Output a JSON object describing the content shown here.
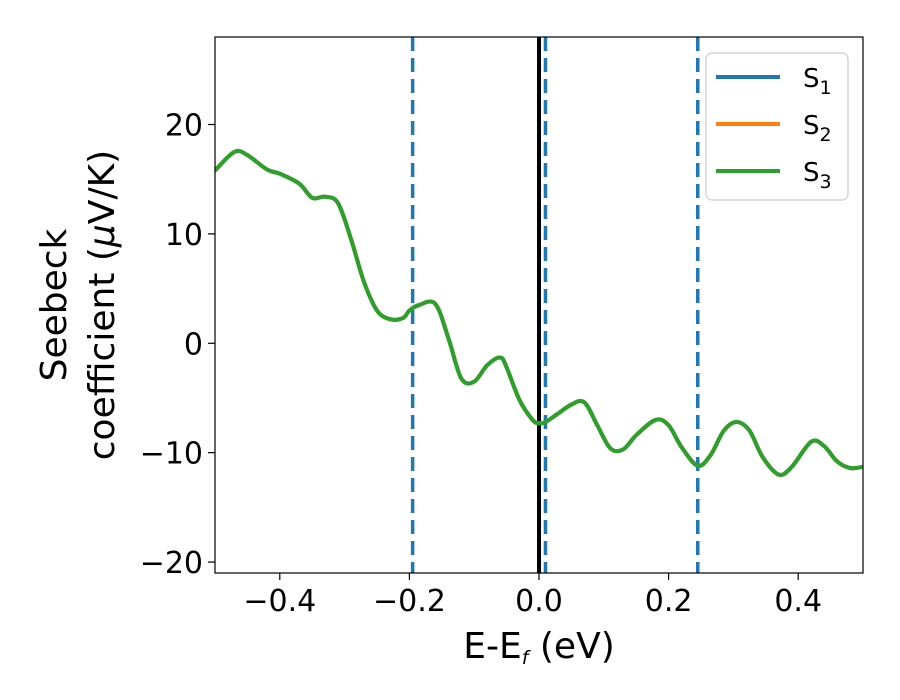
{
  "chart_data": {
    "type": "line",
    "xlabel": "E-E",
    "xlabel_sub": "f",
    "xlabel_unit": " (eV)",
    "ylabel_line1": "Seebeck",
    "ylabel_line2_pre": "coefficient  (",
    "ylabel_mu": "μ",
    "ylabel_line2_post": "V/K)",
    "xlim": [
      -0.5,
      0.5
    ],
    "ylim": [
      -21,
      28
    ],
    "x_ticks": [
      -0.4,
      -0.2,
      0.0,
      0.2,
      0.4
    ],
    "x_tick_labels": [
      "−0.4",
      "−0.2",
      "0.0",
      "0.2",
      "0.4"
    ],
    "y_ticks": [
      -20,
      -10,
      0,
      10,
      20
    ],
    "y_tick_labels": [
      "−20",
      "−10",
      "0",
      "10",
      "20"
    ],
    "grid": false,
    "legend_position": "top-right",
    "series": [
      {
        "name": "S",
        "sub": "1",
        "color": "#1f77b4",
        "x": [
          -0.5,
          -0.47,
          -0.45,
          -0.42,
          -0.4,
          -0.37,
          -0.35,
          -0.33,
          -0.31,
          -0.29,
          -0.27,
          -0.25,
          -0.23,
          -0.21,
          -0.2,
          -0.185,
          -0.16,
          -0.14,
          -0.12,
          -0.1,
          -0.08,
          -0.06,
          -0.05,
          -0.03,
          -0.01,
          0.0,
          0.01,
          0.03,
          0.05,
          0.07,
          0.09,
          0.11,
          0.13,
          0.15,
          0.18,
          0.2,
          0.22,
          0.245,
          0.265,
          0.285,
          0.305,
          0.325,
          0.345,
          0.37,
          0.39,
          0.42,
          0.44,
          0.46,
          0.48,
          0.5
        ],
        "y": [
          15.8,
          17.5,
          17.2,
          15.9,
          15.5,
          14.6,
          13.3,
          13.4,
          12.8,
          9.5,
          5.6,
          3.0,
          2.2,
          2.3,
          3.0,
          3.5,
          3.6,
          0.5,
          -3.2,
          -3.5,
          -2.0,
          -1.3,
          -2.2,
          -5.2,
          -7.0,
          -7.3,
          -7.2,
          -6.4,
          -5.6,
          -5.4,
          -7.5,
          -9.6,
          -9.7,
          -8.4,
          -7.0,
          -7.5,
          -9.5,
          -11.2,
          -10.2,
          -8.0,
          -7.2,
          -8.0,
          -10.4,
          -12.0,
          -11.3,
          -9.0,
          -9.4,
          -10.8,
          -11.4,
          -11.3
        ]
      },
      {
        "name": "S",
        "sub": "2",
        "color": "#ff7f0e",
        "x": [
          -0.5,
          -0.47,
          -0.45,
          -0.42,
          -0.4,
          -0.37,
          -0.35,
          -0.33,
          -0.31,
          -0.29,
          -0.27,
          -0.25,
          -0.23,
          -0.21,
          -0.2,
          -0.185,
          -0.16,
          -0.14,
          -0.12,
          -0.1,
          -0.08,
          -0.06,
          -0.05,
          -0.03,
          -0.01,
          0.0,
          0.01,
          0.03,
          0.05,
          0.07,
          0.09,
          0.11,
          0.13,
          0.15,
          0.18,
          0.2,
          0.22,
          0.245,
          0.265,
          0.285,
          0.305,
          0.325,
          0.345,
          0.37,
          0.39,
          0.42,
          0.44,
          0.46,
          0.48,
          0.5
        ],
        "y": [
          15.8,
          17.5,
          17.2,
          15.9,
          15.5,
          14.6,
          13.3,
          13.4,
          12.8,
          9.5,
          5.6,
          3.0,
          2.2,
          2.3,
          3.0,
          3.5,
          3.6,
          0.5,
          -3.2,
          -3.5,
          -2.0,
          -1.3,
          -2.2,
          -5.2,
          -7.0,
          -7.3,
          -7.2,
          -6.4,
          -5.6,
          -5.4,
          -7.5,
          -9.6,
          -9.7,
          -8.4,
          -7.0,
          -7.5,
          -9.5,
          -11.2,
          -10.2,
          -8.0,
          -7.2,
          -8.0,
          -10.4,
          -12.0,
          -11.3,
          -9.0,
          -9.4,
          -10.8,
          -11.4,
          -11.3
        ]
      },
      {
        "name": "S",
        "sub": "3",
        "color": "#2ca02c",
        "x": [
          -0.5,
          -0.47,
          -0.45,
          -0.42,
          -0.4,
          -0.37,
          -0.35,
          -0.33,
          -0.31,
          -0.29,
          -0.27,
          -0.25,
          -0.23,
          -0.21,
          -0.2,
          -0.185,
          -0.16,
          -0.14,
          -0.12,
          -0.1,
          -0.08,
          -0.06,
          -0.05,
          -0.03,
          -0.01,
          0.0,
          0.01,
          0.03,
          0.05,
          0.07,
          0.09,
          0.11,
          0.13,
          0.15,
          0.18,
          0.2,
          0.22,
          0.245,
          0.265,
          0.285,
          0.305,
          0.325,
          0.345,
          0.37,
          0.39,
          0.42,
          0.44,
          0.46,
          0.48,
          0.5
        ],
        "y": [
          15.8,
          17.5,
          17.2,
          15.9,
          15.5,
          14.6,
          13.3,
          13.4,
          12.8,
          9.5,
          5.6,
          3.0,
          2.2,
          2.3,
          3.0,
          3.5,
          3.6,
          0.5,
          -3.2,
          -3.5,
          -2.0,
          -1.3,
          -2.2,
          -5.2,
          -7.0,
          -7.3,
          -7.2,
          -6.4,
          -5.6,
          -5.4,
          -7.5,
          -9.6,
          -9.7,
          -8.4,
          -7.0,
          -7.5,
          -9.5,
          -11.2,
          -10.2,
          -8.0,
          -7.2,
          -8.0,
          -10.4,
          -12.0,
          -11.3,
          -9.0,
          -9.4,
          -10.8,
          -11.4,
          -11.3
        ]
      }
    ],
    "vertical_lines": [
      {
        "x": -0.195,
        "style": "dashed",
        "color": "#1f77b4"
      },
      {
        "x": 0.01,
        "style": "dashed",
        "color": "#1f77b4"
      },
      {
        "x": 0.245,
        "style": "dashed",
        "color": "#1f77b4"
      },
      {
        "x": 0.0,
        "style": "solid",
        "color": "#000000"
      }
    ]
  }
}
